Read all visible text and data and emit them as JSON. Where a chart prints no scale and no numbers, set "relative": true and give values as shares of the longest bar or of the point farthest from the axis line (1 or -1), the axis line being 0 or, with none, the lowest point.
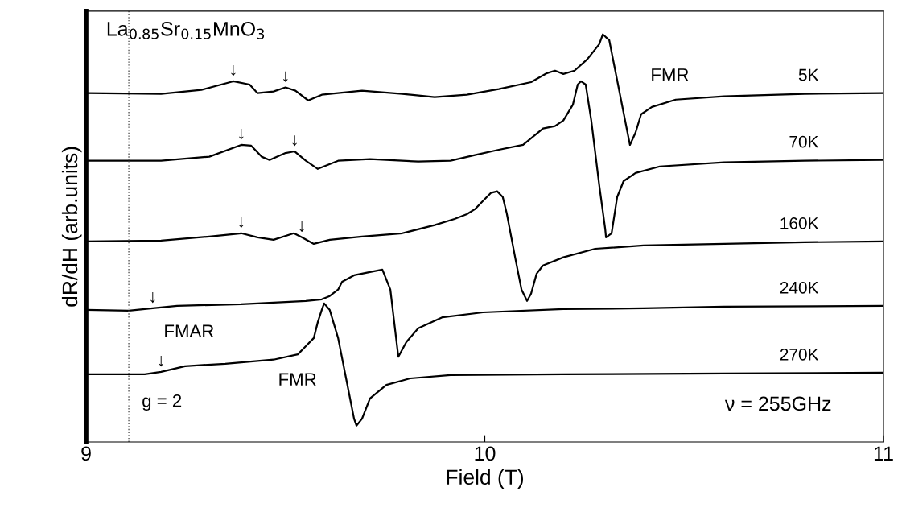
{
  "chart_data": {
    "type": "line",
    "relative": true,
    "xlabel": "Field (T)",
    "ylabel": "dR/dH (arb.units)",
    "xlim": [
      9,
      11
    ],
    "xticks": [
      9,
      10,
      11
    ],
    "grid": false,
    "legend": false,
    "marker": "none",
    "line_style": "solid",
    "series": [
      {
        "name": "5K",
        "color": "#000000",
        "x": [
          9.0,
          9.188,
          9.289,
          9.369,
          9.41,
          9.43,
          9.47,
          9.5,
          9.525,
          9.557,
          9.591,
          9.692,
          9.793,
          9.874,
          9.955,
          10.035,
          10.116,
          10.156,
          10.176,
          10.197,
          10.225,
          10.257,
          10.287,
          10.296,
          10.312,
          10.328,
          10.348,
          10.364,
          10.378,
          10.392,
          10.419,
          10.479,
          10.6,
          10.802,
          11.0
        ],
        "values": [
          0.856,
          0.854,
          0.864,
          0.885,
          0.877,
          0.856,
          0.86,
          0.87,
          0.862,
          0.838,
          0.852,
          0.862,
          0.854,
          0.846,
          0.852,
          0.866,
          0.883,
          0.905,
          0.911,
          0.903,
          0.911,
          0.939,
          0.976,
          1.0,
          0.986,
          0.907,
          0.808,
          0.729,
          0.759,
          0.804,
          0.822,
          0.84,
          0.848,
          0.854,
          0.856
        ]
      },
      {
        "name": "70K",
        "color": "#000000",
        "x": [
          9.0,
          9.188,
          9.309,
          9.389,
          9.414,
          9.44,
          9.46,
          9.5,
          9.523,
          9.551,
          9.581,
          9.632,
          9.712,
          9.833,
          9.914,
          9.975,
          10.035,
          10.096,
          10.146,
          10.176,
          10.197,
          10.221,
          10.233,
          10.241,
          10.253,
          10.267,
          10.287,
          10.302,
          10.304,
          10.318,
          10.332,
          10.348,
          10.378,
          10.439,
          10.6,
          10.802,
          11.0
        ],
        "values": [
          0.69,
          0.69,
          0.7,
          0.729,
          0.727,
          0.7,
          0.692,
          0.709,
          0.713,
          0.69,
          0.67,
          0.69,
          0.694,
          0.688,
          0.69,
          0.704,
          0.717,
          0.729,
          0.769,
          0.775,
          0.789,
          0.828,
          0.877,
          0.885,
          0.877,
          0.789,
          0.63,
          0.522,
          0.502,
          0.512,
          0.601,
          0.64,
          0.66,
          0.676,
          0.686,
          0.69,
          0.692
        ]
      },
      {
        "name": "160K",
        "color": "#000000",
        "x": [
          9.0,
          9.188,
          9.309,
          9.389,
          9.43,
          9.47,
          9.521,
          9.541,
          9.571,
          9.611,
          9.692,
          9.793,
          9.874,
          9.924,
          9.955,
          9.975,
          9.995,
          10.015,
          10.031,
          10.045,
          10.055,
          10.076,
          10.092,
          10.106,
          10.116,
          10.13,
          10.146,
          10.197,
          10.277,
          10.398,
          10.6,
          10.802,
          11.0
        ],
        "values": [
          0.492,
          0.494,
          0.504,
          0.512,
          0.502,
          0.496,
          0.512,
          0.502,
          0.486,
          0.496,
          0.504,
          0.512,
          0.532,
          0.547,
          0.559,
          0.571,
          0.591,
          0.611,
          0.615,
          0.601,
          0.561,
          0.453,
          0.374,
          0.346,
          0.364,
          0.413,
          0.433,
          0.453,
          0.474,
          0.482,
          0.486,
          0.49,
          0.492
        ]
      },
      {
        "name": "240K",
        "color": "#000000",
        "x": [
          9.0,
          9.107,
          9.167,
          9.228,
          9.389,
          9.551,
          9.591,
          9.611,
          9.632,
          9.642,
          9.672,
          9.712,
          9.743,
          9.763,
          9.783,
          9.803,
          9.833,
          9.894,
          9.995,
          10.197,
          10.398,
          10.6,
          11.0
        ],
        "values": [
          0.324,
          0.322,
          0.328,
          0.334,
          0.338,
          0.346,
          0.35,
          0.358,
          0.374,
          0.393,
          0.409,
          0.417,
          0.423,
          0.374,
          0.209,
          0.245,
          0.279,
          0.306,
          0.318,
          0.326,
          0.328,
          0.332,
          0.334
        ]
      },
      {
        "name": "270K",
        "color": "#000000",
        "x": [
          9.0,
          9.087,
          9.147,
          9.188,
          9.248,
          9.349,
          9.47,
          9.531,
          9.551,
          9.571,
          9.581,
          9.591,
          9.597,
          9.611,
          9.632,
          9.652,
          9.672,
          9.678,
          9.692,
          9.712,
          9.753,
          9.813,
          9.914,
          10.197,
          10.6,
          11.0
        ],
        "values": [
          0.166,
          0.166,
          0.166,
          0.172,
          0.186,
          0.192,
          0.202,
          0.215,
          0.235,
          0.255,
          0.294,
          0.324,
          0.34,
          0.324,
          0.255,
          0.156,
          0.057,
          0.04,
          0.057,
          0.107,
          0.14,
          0.156,
          0.164,
          0.166,
          0.168,
          0.17
        ]
      }
    ],
    "ref_lines": [
      {
        "axis": "x",
        "value": 9.107,
        "color": "#555555",
        "line_style": "dotted"
      }
    ],
    "annotations": [
      "La$_{0.85}$Sr$_{0.15}$MnO$_{3}$",
      "ν = 255GHz",
      "FMR",
      "FMR",
      "FMAR",
      "g = 2",
      {
        "text": "↓",
        "x": 9.369,
        "y": 0.885
      },
      {
        "text": "↓",
        "x": 9.5,
        "y": 0.87
      },
      {
        "text": "↓",
        "x": 9.389,
        "y": 0.729
      },
      {
        "text": "↓",
        "x": 9.523,
        "y": 0.713
      },
      {
        "text": "↓",
        "x": 9.389,
        "y": 0.512
      },
      {
        "text": "↓",
        "x": 9.541,
        "y": 0.502
      },
      {
        "text": "↓",
        "x": 9.167,
        "y": 0.328
      },
      {
        "text": "↓",
        "x": 9.188,
        "y": 0.172
      }
    ]
  }
}
